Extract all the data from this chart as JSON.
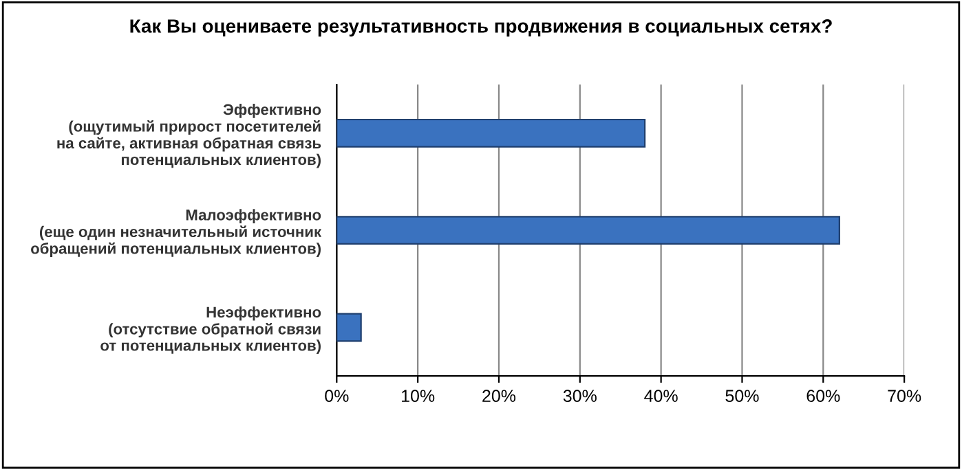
{
  "chart_data": {
    "type": "bar",
    "orientation": "horizontal",
    "title": "Как Вы оцениваете результативность продвижения в социальных сетях?",
    "categories": [
      "Эффективно\n(ощутимый прирост посетителей\nна сайте, активная обратная связь\nпотенциальных клиентов)",
      "Малоэффективно\n(еще один незначительный источник\nобращений потенциальных клиентов)",
      "Неэффективно\n(отсутствие обратной связи\nот потенциальных клиентов)"
    ],
    "values": [
      38,
      62,
      3
    ],
    "color": "#3a72bf",
    "xlim": [
      0,
      70
    ],
    "xticks": [
      {
        "value": 0,
        "label": "0%"
      },
      {
        "value": 10,
        "label": "10%"
      },
      {
        "value": 20,
        "label": "20%"
      },
      {
        "value": 30,
        "label": "30%"
      },
      {
        "value": 40,
        "label": "40%"
      },
      {
        "value": 50,
        "label": "50%"
      },
      {
        "value": 60,
        "label": "60%"
      },
      {
        "value": 70,
        "label": "70%"
      }
    ],
    "grid": "x",
    "legend": false
  }
}
